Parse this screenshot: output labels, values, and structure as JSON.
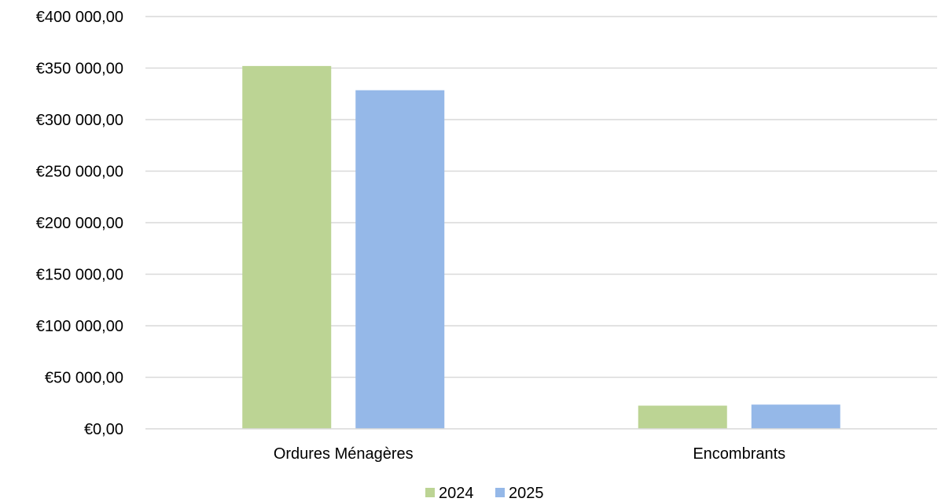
{
  "chart_data": {
    "type": "bar",
    "title": "",
    "xlabel": "",
    "ylabel": "",
    "categories": [
      "Ordures Ménagères",
      "Encombrants"
    ],
    "series": [
      {
        "name": "2024",
        "color": "#bcd494",
        "values": [
          352000,
          22500
        ]
      },
      {
        "name": "2025",
        "color": "#95b8e8",
        "values": [
          328500,
          23500
        ]
      }
    ],
    "ylim": [
      0,
      400000
    ],
    "y_ticks": [
      0,
      50000,
      100000,
      150000,
      200000,
      250000,
      300000,
      350000,
      400000
    ],
    "y_tick_labels": [
      "€0,00",
      "€50 000,00",
      "€100 000,00",
      "€150 000,00",
      "€200 000,00",
      "€250 000,00",
      "€300 000,00",
      "€350 000,00",
      "€400 000,00"
    ],
    "grid": true,
    "legend_position": "bottom",
    "gridline_color": "#d9d9d9"
  }
}
